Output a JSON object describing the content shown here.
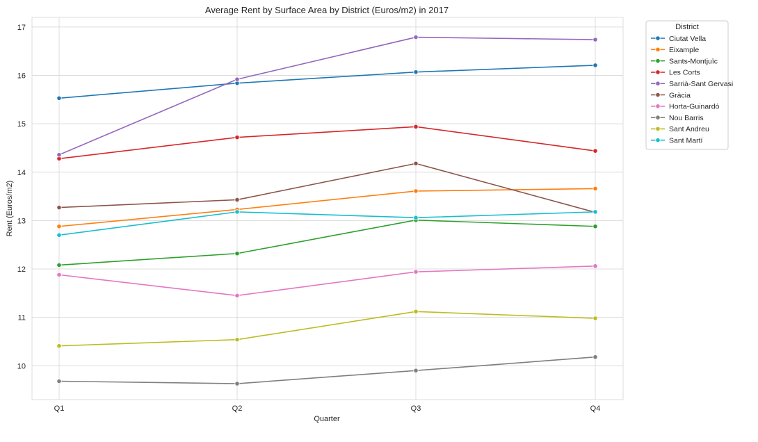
{
  "chart_data": {
    "type": "line",
    "title": "Average Rent by Surface Area by District (Euros/m2) in 2017",
    "xlabel": "Quarter",
    "ylabel": "Rent (Euros/m2)",
    "categories": [
      "Q1",
      "Q2",
      "Q3",
      "Q4"
    ],
    "ylim": [
      9.3,
      17.2
    ],
    "yticks": [
      10,
      11,
      12,
      13,
      14,
      15,
      16,
      17
    ],
    "ytick_labels": [
      "10",
      "11",
      "12",
      "13",
      "14",
      "15",
      "16",
      "17"
    ],
    "grid": true,
    "legend_title": "District",
    "legend_position": "outside-top-right",
    "series": [
      {
        "name": "Ciutat Vella",
        "color": "#1f77b4",
        "values": [
          15.53,
          15.84,
          16.07,
          16.21
        ]
      },
      {
        "name": "Eixample",
        "color": "#ff7f0e",
        "values": [
          12.88,
          13.23,
          13.61,
          13.66
        ]
      },
      {
        "name": "Sants-Montjuïc",
        "color": "#2ca02c",
        "values": [
          12.08,
          12.32,
          13.01,
          12.88
        ]
      },
      {
        "name": "Les Corts",
        "color": "#d62728",
        "values": [
          14.28,
          14.72,
          14.94,
          14.44
        ]
      },
      {
        "name": "Sarrià-Sant Gervasi",
        "color": "#9467bd",
        "values": [
          14.36,
          15.92,
          16.79,
          16.74
        ]
      },
      {
        "name": "Gràcia",
        "color": "#8c564b",
        "values": [
          13.27,
          13.43,
          14.18,
          13.17
        ]
      },
      {
        "name": "Horta-Guinardó",
        "color": "#e377c2",
        "values": [
          11.88,
          11.45,
          11.94,
          12.06
        ]
      },
      {
        "name": "Nou Barris",
        "color": "#7f7f7f",
        "values": [
          9.68,
          9.63,
          9.9,
          10.18
        ]
      },
      {
        "name": "Sant Andreu",
        "color": "#bcbd22",
        "values": [
          10.41,
          10.54,
          11.12,
          10.98
        ]
      },
      {
        "name": "Sant Martí",
        "color": "#17becf",
        "values": [
          12.7,
          13.18,
          13.06,
          13.18
        ]
      }
    ]
  }
}
